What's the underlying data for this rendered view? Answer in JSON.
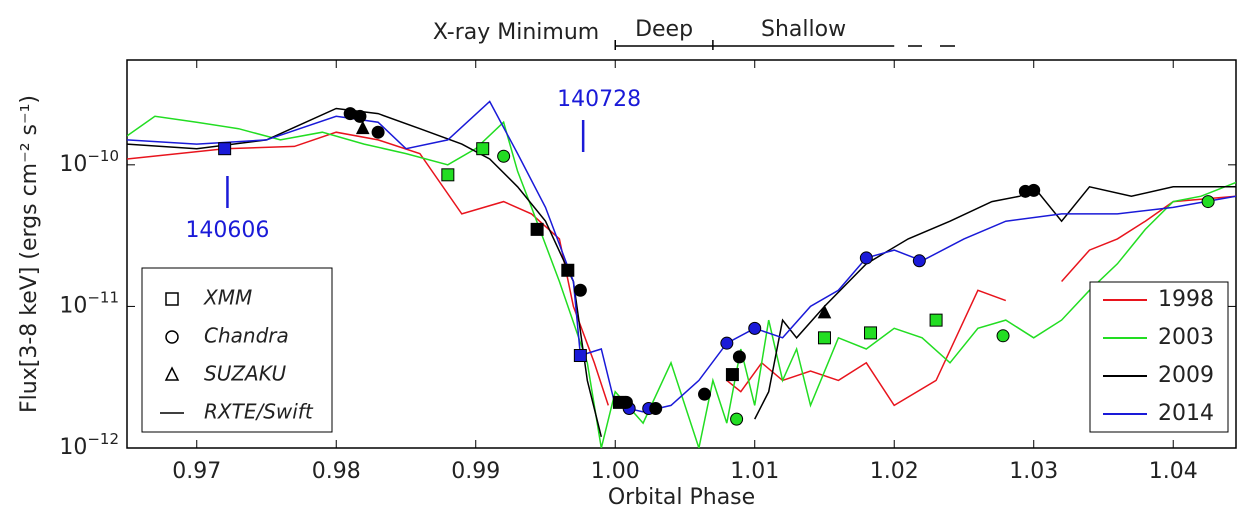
{
  "chart_data": {
    "type": "line",
    "log_y": true,
    "xlabel": "Orbital Phase",
    "ylabel": "Flux[3-8 keV] (ergs cm⁻² s⁻¹)",
    "xlim": [
      0.965,
      1.0445
    ],
    "ylim": [
      1e-12,
      5.5e-10
    ],
    "xticks": [
      0.97,
      0.98,
      0.99,
      {
        "value": 1.0,
        "label": "1.00"
      },
      1.01,
      1.02,
      1.03,
      1.04
    ],
    "yticks": [
      {
        "value": 1e-12,
        "label": "10",
        "exp": "−12"
      },
      {
        "value": 1e-11,
        "label": "10",
        "exp": "−11"
      },
      {
        "value": 1e-10,
        "label": "10",
        "exp": "−10"
      }
    ],
    "top_labels": {
      "title": "X-ray Minimum",
      "deep": "Deep",
      "deep_range": [
        1.0,
        1.007
      ],
      "shallow": "Shallow",
      "shallow_range": [
        1.007,
        1.02
      ]
    },
    "annotations": [
      {
        "text": "140728",
        "x": 0.9977,
        "color": "#1a1ad8"
      },
      {
        "text": "140606",
        "x": 0.9722,
        "color": "#1a1ad8"
      }
    ],
    "markers": [
      {
        "name": "XMM",
        "shape": "square"
      },
      {
        "name": "Chandra",
        "shape": "circle"
      },
      {
        "name": "SUZAKU",
        "shape": "triangle"
      },
      {
        "name": "RXTE/Swift",
        "shape": "line"
      }
    ],
    "series": [
      {
        "name": "1998",
        "color": "#e8141d",
        "x": [
          0.965,
          0.972,
          0.977,
          0.98,
          0.983,
          0.986,
          0.989,
          0.992,
          0.994,
          0.996,
          0.997,
          0.9985,
          0.9995,
          1.001,
          1.008,
          1.009,
          1.0105,
          1.012,
          1.014,
          1.016,
          1.018,
          1.02,
          1.023,
          1.026,
          1.028,
          1.03,
          1.032,
          1.034,
          1.036,
          1.038,
          1.04,
          1.0445
        ],
        "values": [
          1.1e-10,
          1.3e-10,
          1.35e-10,
          1.7e-10,
          1.5e-10,
          1.2e-10,
          4.5e-11,
          5.5e-11,
          4.5e-11,
          3e-11,
          1e-11,
          4e-12,
          2e-12,
          null,
          3e-12,
          2.5e-12,
          4e-12,
          3e-12,
          3.5e-12,
          3e-12,
          4e-12,
          2e-12,
          3e-12,
          1.3e-11,
          1.1e-11,
          null,
          1.5e-11,
          2.5e-11,
          3e-11,
          4e-11,
          5.5e-11,
          6e-11
        ]
      },
      {
        "name": "2003",
        "color": "#22dd22",
        "x": [
          0.965,
          0.967,
          0.97,
          0.973,
          0.976,
          0.979,
          0.982,
          0.985,
          0.988,
          0.99,
          0.992,
          0.993,
          0.994,
          0.996,
          0.998,
          0.999,
          1.0,
          1.002,
          1.004,
          1.006,
          1.007,
          1.008,
          1.009,
          1.01,
          1.011,
          1.012,
          1.013,
          1.014,
          1.016,
          1.018,
          1.02,
          1.022,
          1.024,
          1.026,
          1.028,
          1.03,
          1.032,
          1.034,
          1.036,
          1.038,
          1.04,
          1.042,
          1.0445
        ],
        "values": [
          1.6e-10,
          2.2e-10,
          2e-10,
          1.8e-10,
          1.5e-10,
          1.7e-10,
          1.4e-10,
          1.2e-10,
          1e-10,
          1.3e-10,
          2e-10,
          9e-11,
          5e-11,
          1.5e-11,
          4e-12,
          1e-12,
          2.5e-12,
          1.5e-12,
          4e-12,
          1e-12,
          3e-12,
          1.5e-12,
          5e-12,
          2e-12,
          8e-12,
          3e-12,
          5e-12,
          2e-12,
          6e-12,
          5e-12,
          7e-12,
          6e-12,
          4e-12,
          7e-12,
          8e-12,
          6e-12,
          8e-12,
          1.3e-11,
          2e-11,
          3.5e-11,
          5.5e-11,
          6e-11,
          7.5e-11
        ]
      },
      {
        "name": "2009",
        "color": "#000000",
        "x": [
          0.965,
          0.97,
          0.975,
          0.98,
          0.983,
          0.986,
          0.989,
          0.991,
          0.993,
          0.995,
          0.997,
          0.998,
          0.999,
          1.009,
          1.01,
          1.011,
          1.012,
          1.013,
          1.015,
          1.018,
          1.021,
          1.024,
          1.027,
          1.029,
          1.03,
          1.032,
          1.034,
          1.037,
          1.04,
          1.0445
        ],
        "values": [
          1.4e-10,
          1.3e-10,
          1.5e-10,
          2.5e-10,
          2.3e-10,
          1.8e-10,
          1.4e-10,
          1.1e-10,
          7e-11,
          4e-11,
          1.5e-11,
          3e-12,
          1.2e-12,
          null,
          1.6e-12,
          2.5e-12,
          8e-12,
          6e-12,
          1e-11,
          2e-11,
          3e-11,
          4e-11,
          5.5e-11,
          6e-11,
          7e-11,
          4e-11,
          7e-11,
          6e-11,
          7e-11,
          7e-11
        ]
      },
      {
        "name": "2014",
        "color": "#1a1ad8",
        "x": [
          0.965,
          0.97,
          0.975,
          0.98,
          0.983,
          0.985,
          0.988,
          0.991,
          0.993,
          0.995,
          0.997,
          0.9975,
          0.999,
          1.0,
          1.002,
          1.004,
          1.006,
          1.008,
          1.01,
          1.012,
          1.014,
          1.016,
          1.018,
          1.02,
          1.022,
          1.025,
          1.028,
          1.032,
          1.036,
          1.04,
          1.0445
        ],
        "values": [
          1.5e-10,
          1.4e-10,
          1.5e-10,
          2.2e-10,
          2e-10,
          1.3e-10,
          1.5e-10,
          2.8e-10,
          1.2e-10,
          5e-11,
          1.5e-11,
          4.5e-12,
          5e-12,
          2e-12,
          1.8e-12,
          2e-12,
          3e-12,
          5.5e-12,
          7e-12,
          6e-12,
          1e-11,
          1.3e-11,
          2.2e-11,
          2.5e-11,
          2.1e-11,
          3e-11,
          4e-11,
          4.5e-11,
          4.5e-11,
          5e-11,
          6e-11
        ]
      }
    ],
    "observations": [
      {
        "series": 3,
        "x": [
          0.972,
          0.9975,
          1.001,
          1.0024,
          1.008,
          1.01,
          1.018,
          1.0218
        ],
        "values": [
          1.3e-10,
          4.5e-12,
          1.9e-12,
          1.9e-12,
          5.5e-12,
          7e-12,
          2.2e-11,
          2.1e-11
        ],
        "shape": [
          "square",
          "square",
          "circle",
          "circle",
          "circle",
          "circle",
          "circle",
          "circle"
        ]
      },
      {
        "series": 2,
        "x": [
          0.981,
          0.9817,
          0.983,
          0.9975,
          1.0008,
          1.0029,
          1.0064,
          1.0089,
          1.0294,
          1.03,
          0.9944,
          0.9966,
          1.0003,
          1.0084,
          0.9819,
          1.015
        ],
        "values": [
          2.3e-10,
          2.2e-10,
          1.7e-10,
          1.3e-11,
          2.1e-12,
          1.9e-12,
          2.4e-12,
          4.4e-12,
          6.5e-11,
          6.6e-11,
          3.5e-11,
          1.8e-11,
          2.1e-12,
          3.3e-12,
          1.8e-10,
          9e-12
        ],
        "shape": [
          "circle",
          "circle",
          "circle",
          "circle",
          "circle",
          "circle",
          "circle",
          "circle",
          "circle",
          "circle",
          "square",
          "square",
          "square",
          "square",
          "triangle",
          "triangle"
        ]
      },
      {
        "series": 1,
        "x": [
          0.988,
          0.9905,
          1.015,
          1.0183,
          1.023,
          0.992,
          1.0087,
          1.0278,
          1.0425
        ],
        "values": [
          8.5e-11,
          1.3e-10,
          6e-12,
          6.5e-12,
          8e-12,
          1.15e-10,
          1.6e-12,
          6.2e-12,
          5.5e-11
        ],
        "shape": [
          "square",
          "square",
          "square",
          "square",
          "square",
          "circle",
          "circle",
          "circle",
          "circle"
        ]
      }
    ]
  }
}
